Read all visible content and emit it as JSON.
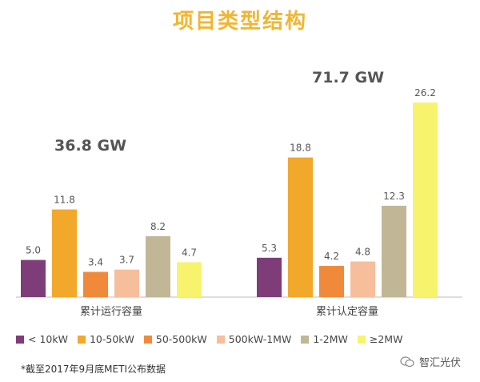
{
  "title": "项目类型结构",
  "title_color": "#F2B531",
  "chart_data": {
    "type": "bar",
    "categories": [
      "累计运行容量",
      "累计认定容量"
    ],
    "series": [
      {
        "name": "< 10kW",
        "values": [
          5.0,
          5.3
        ],
        "color": "#7E3D78"
      },
      {
        "name": "10-50kW",
        "values": [
          11.8,
          18.8
        ],
        "color": "#F2A82B"
      },
      {
        "name": "50-500kW",
        "values": [
          3.4,
          4.2
        ],
        "color": "#F08A3A"
      },
      {
        "name": "500kW-1MW",
        "values": [
          3.7,
          4.8
        ],
        "color": "#F7BE9B"
      },
      {
        "name": "1-2MW",
        "values": [
          8.2,
          12.3
        ],
        "color": "#C1B796"
      },
      {
        "name": "≥2MW",
        "values": [
          4.7,
          26.2
        ],
        "color": "#F8F36C"
      }
    ],
    "group_totals": [
      "36.8 GW",
      "71.7 GW"
    ],
    "ylim": [
      0,
      26.2
    ],
    "legend_position": "bottom",
    "grid": false
  },
  "footnote": "*截至2017年9月底METI公布数据",
  "watermark": "智汇光伏"
}
